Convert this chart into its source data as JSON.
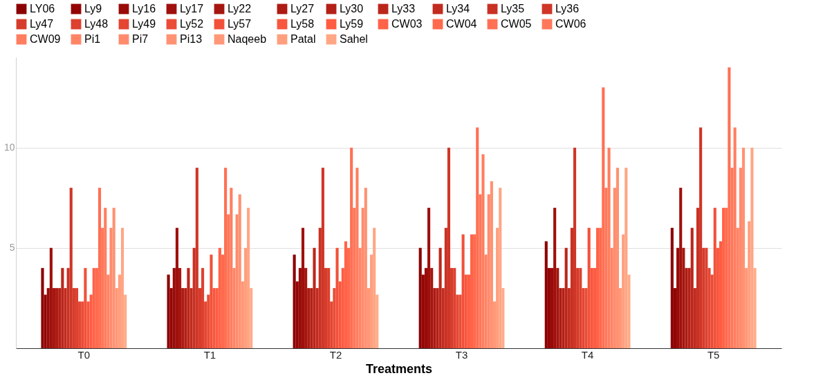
{
  "chart_data": {
    "type": "bar",
    "xlabel": "Treatments",
    "categories": [
      "T0",
      "T1",
      "T2",
      "T3",
      "T4",
      "T5"
    ],
    "ylim": [
      0,
      14.5
    ],
    "yticks": [
      5,
      10
    ],
    "grid": "y",
    "legend": "top",
    "series": [
      {
        "name": "LY06",
        "color": "#8b0000",
        "values": [
          4,
          3.67,
          4.67,
          5,
          5.33,
          6
        ]
      },
      {
        "name": "Ly9",
        "color": "#920504",
        "values": [
          2.67,
          3,
          3.33,
          3.67,
          4,
          3
        ]
      },
      {
        "name": "Ly16",
        "color": "#990b08",
        "values": [
          3,
          4,
          4,
          4,
          4,
          5
        ]
      },
      {
        "name": "Ly17",
        "color": "#9f100c",
        "values": [
          5,
          6,
          6,
          7,
          7,
          8
        ]
      },
      {
        "name": "Ly22",
        "color": "#a61610",
        "values": [
          3,
          4,
          4,
          4,
          4,
          5
        ]
      },
      {
        "name": "Ly27",
        "color": "#ad1b13",
        "values": [
          3,
          3,
          3,
          3,
          3,
          4
        ]
      },
      {
        "name": "Ly30",
        "color": "#b42017",
        "values": [
          3,
          3,
          3,
          3,
          3,
          4
        ]
      },
      {
        "name": "Ly33",
        "color": "#bb261b",
        "values": [
          4,
          4,
          5,
          5,
          5,
          6
        ]
      },
      {
        "name": "Ly34",
        "color": "#c22b1f",
        "values": [
          3,
          3,
          3,
          3,
          3,
          3
        ]
      },
      {
        "name": "Ly35",
        "color": "#c83123",
        "values": [
          4,
          5,
          6,
          6,
          6,
          7
        ]
      },
      {
        "name": "Ly36",
        "color": "#cf3627",
        "values": [
          8,
          9,
          9,
          10,
          10,
          11
        ]
      },
      {
        "name": "Ly47",
        "color": "#d63c2b",
        "values": [
          3,
          3,
          4,
          4,
          4,
          5
        ]
      },
      {
        "name": "Ly48",
        "color": "#dd412f",
        "values": [
          3,
          4,
          4,
          4,
          4,
          5
        ]
      },
      {
        "name": "Ly49",
        "color": "#e44632",
        "values": [
          2.33,
          2.33,
          2.33,
          2.67,
          3,
          4
        ]
      },
      {
        "name": "Ly52",
        "color": "#ea4c36",
        "values": [
          2.33,
          2.67,
          3,
          2.67,
          3,
          3.67
        ]
      },
      {
        "name": "Ly57",
        "color": "#f1513a",
        "values": [
          4,
          4.67,
          5,
          5.67,
          6,
          7
        ]
      },
      {
        "name": "Ly58",
        "color": "#f8573e",
        "values": [
          2.33,
          3,
          3.33,
          3.67,
          4,
          5
        ]
      },
      {
        "name": "Ly59",
        "color": "#ff5c42",
        "values": [
          2.67,
          3,
          4,
          3.67,
          4,
          5.33
        ]
      },
      {
        "name": "CW03",
        "color": "#ff6348",
        "values": [
          4,
          5,
          5.33,
          5.67,
          6,
          7
        ]
      },
      {
        "name": "CW04",
        "color": "#ff6a4e",
        "values": [
          4,
          4.67,
          5,
          5.67,
          6,
          7
        ]
      },
      {
        "name": "CW05",
        "color": "#ff7054",
        "values": [
          8,
          9,
          10,
          11,
          13,
          14
        ]
      },
      {
        "name": "CW06",
        "color": "#ff775a",
        "values": [
          6,
          6.67,
          7,
          7.67,
          8,
          9
        ]
      },
      {
        "name": "CW09",
        "color": "#ff7e60",
        "values": [
          7,
          8,
          9,
          9.67,
          10,
          11
        ]
      },
      {
        "name": "Pi1",
        "color": "#ff8466",
        "values": [
          3.67,
          4,
          5,
          4.67,
          5,
          6
        ]
      },
      {
        "name": "Pi7",
        "color": "#ff8b6c",
        "values": [
          6,
          6.67,
          7,
          7.67,
          8,
          9
        ]
      },
      {
        "name": "Pi13",
        "color": "#ff9272",
        "values": [
          7,
          7.67,
          8,
          8.33,
          9,
          10
        ]
      },
      {
        "name": "Naqeeb",
        "color": "#ff9878",
        "values": [
          3,
          3.33,
          3,
          2.33,
          3,
          4
        ]
      },
      {
        "name": "Patal",
        "color": "#ff9f7e",
        "values": [
          3.67,
          5,
          4.67,
          6,
          5.67,
          6.33
        ]
      },
      {
        "name": "Sahel",
        "color": "#ffa684",
        "values": [
          6,
          7,
          6,
          8,
          9,
          10
        ]
      },
      {
        "color": "#ffac8a",
        "values": [
          2.67,
          3,
          2.67,
          3,
          3.67,
          4
        ]
      }
    ]
  }
}
